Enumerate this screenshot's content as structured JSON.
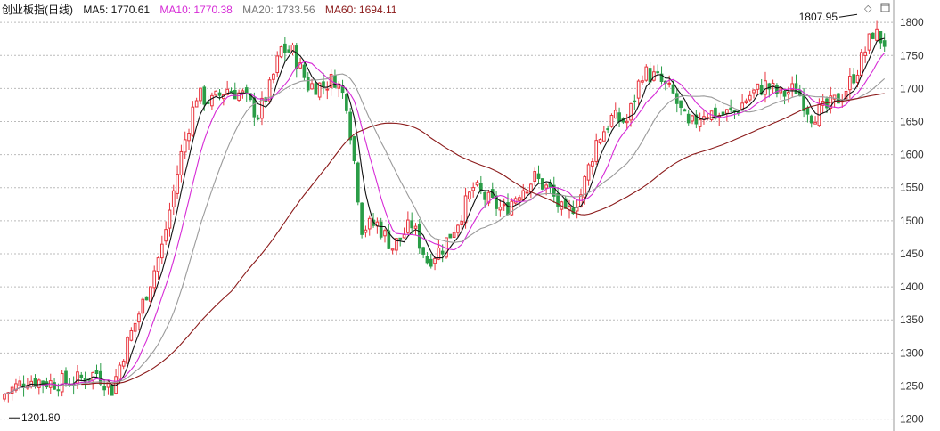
{
  "header": {
    "title": "创业板指(日线)",
    "ma5": "MA5: 1770.61",
    "ma10": "MA10: 1770.38",
    "ma20": "MA20: 1733.56",
    "ma60": "MA60: 1694.11"
  },
  "colors": {
    "up": "#e8333c",
    "down": "#2a9d47",
    "ma5": "#111111",
    "ma10": "#d62ad6",
    "ma20": "#9a9a9a",
    "ma60": "#8b1a1a",
    "grid": "#bbbbbb"
  },
  "icons": {
    "reset": "diamond-icon",
    "window": "restore-window-icon"
  },
  "chart_data": {
    "type": "candlestick",
    "title": "创业板指(日线)",
    "ylim": [
      1190,
      1815
    ],
    "y_ticks": [
      1200,
      1250,
      1300,
      1350,
      1400,
      1450,
      1500,
      1550,
      1600,
      1650,
      1700,
      1750,
      1800
    ],
    "grid": true,
    "annotations": {
      "high": "1807.95",
      "low": "1201.80"
    },
    "series": [
      {
        "name": "MA5",
        "value": 1770.61
      },
      {
        "name": "MA10",
        "value": 1770.38
      },
      {
        "name": "MA20",
        "value": 1733.56
      },
      {
        "name": "MA60",
        "value": 1694.11
      }
    ],
    "anchors": [
      [
        0,
        1238
      ],
      [
        6,
        1260
      ],
      [
        12,
        1255
      ],
      [
        18,
        1257
      ],
      [
        24,
        1270
      ],
      [
        28,
        1245
      ],
      [
        31,
        1300
      ],
      [
        36,
        1375
      ],
      [
        41,
        1460
      ],
      [
        46,
        1600
      ],
      [
        50,
        1690
      ],
      [
        54,
        1680
      ],
      [
        58,
        1700
      ],
      [
        62,
        1690
      ],
      [
        66,
        1660
      ],
      [
        69,
        1700
      ],
      [
        72,
        1760
      ],
      [
        75,
        1755
      ],
      [
        79,
        1705
      ],
      [
        83,
        1705
      ],
      [
        86,
        1715
      ],
      [
        89,
        1680
      ],
      [
        91,
        1590
      ],
      [
        93,
        1490
      ],
      [
        97,
        1495
      ],
      [
        101,
        1460
      ],
      [
        106,
        1495
      ],
      [
        110,
        1440
      ],
      [
        114,
        1460
      ],
      [
        118,
        1500
      ],
      [
        122,
        1550
      ],
      [
        126,
        1530
      ],
      [
        130,
        1515
      ],
      [
        134,
        1545
      ],
      [
        138,
        1565
      ],
      [
        142,
        1545
      ],
      [
        146,
        1505
      ],
      [
        150,
        1540
      ],
      [
        154,
        1620
      ],
      [
        158,
        1655
      ],
      [
        162,
        1650
      ],
      [
        166,
        1725
      ],
      [
        170,
        1715
      ],
      [
        174,
        1690
      ],
      [
        178,
        1640
      ],
      [
        182,
        1665
      ],
      [
        186,
        1660
      ],
      [
        190,
        1665
      ],
      [
        194,
        1690
      ],
      [
        198,
        1705
      ],
      [
        202,
        1690
      ],
      [
        206,
        1700
      ],
      [
        210,
        1660
      ],
      [
        214,
        1670
      ],
      [
        218,
        1690
      ],
      [
        222,
        1730
      ],
      [
        226,
        1785
      ],
      [
        229,
        1770
      ]
    ],
    "n_bars": 230
  }
}
